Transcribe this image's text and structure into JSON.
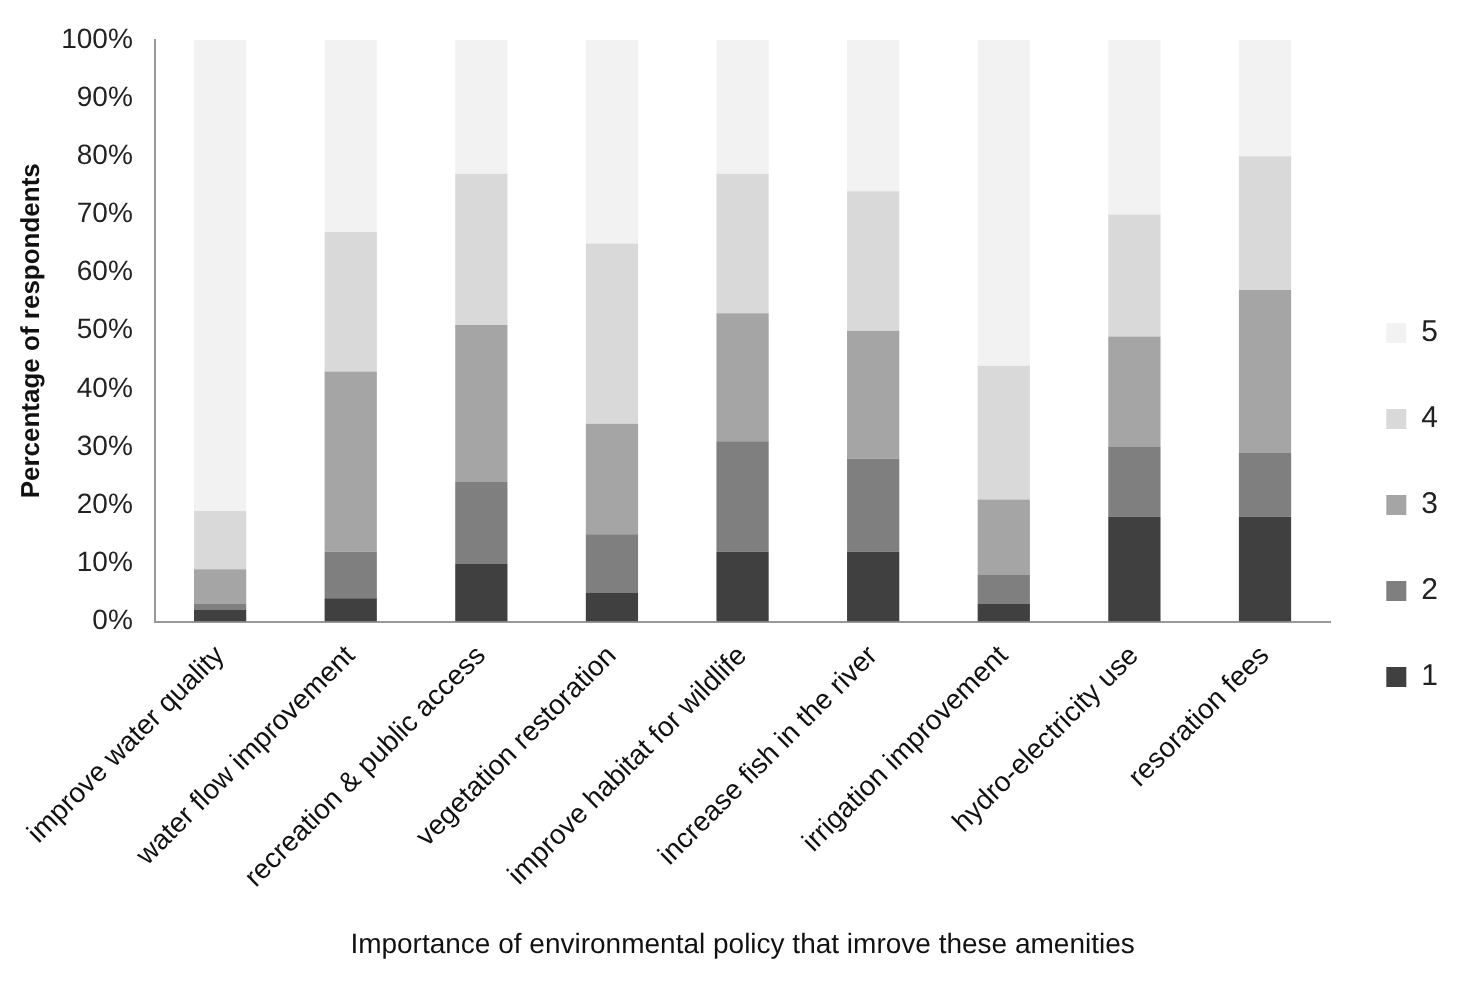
{
  "chart_data": {
    "type": "bar",
    "stacked": true,
    "xlabel": "Importance of environmental policy that imrove these amenities",
    "ylabel": "Percentage of respondents",
    "categories": [
      "improve water quality",
      "water flow improvement",
      "recreation & public access",
      "vegetation restoration",
      "improve habitat for wildlife",
      "increase fish in the river",
      "irrigation improvement",
      "hydro-electricity use",
      "resoration fees"
    ],
    "series": [
      {
        "name": "1",
        "color": "#404040",
        "values": [
          2,
          4,
          10,
          5,
          12,
          12,
          3,
          18,
          18
        ]
      },
      {
        "name": "2",
        "color": "#7f7f7f",
        "values": [
          1,
          8,
          14,
          10,
          19,
          16,
          5,
          12,
          11
        ]
      },
      {
        "name": "3",
        "color": "#a5a5a5",
        "values": [
          6,
          31,
          27,
          19,
          22,
          22,
          13,
          19,
          28
        ]
      },
      {
        "name": "4",
        "color": "#d9d9d9",
        "values": [
          10,
          24,
          26,
          31,
          24,
          24,
          23,
          21,
          23
        ]
      },
      {
        "name": "5",
        "color": "#f2f2f2",
        "values": [
          81,
          33,
          23,
          35,
          23,
          26,
          56,
          30,
          20
        ]
      }
    ],
    "ylim": [
      0,
      100
    ],
    "yticks": [
      {
        "value": 0,
        "label": "0%"
      },
      {
        "value": 10,
        "label": "10%"
      },
      {
        "value": 20,
        "label": "20%"
      },
      {
        "value": 30,
        "label": "30%"
      },
      {
        "value": 40,
        "label": "40%"
      },
      {
        "value": 50,
        "label": "50%"
      },
      {
        "value": 60,
        "label": "60%"
      },
      {
        "value": 70,
        "label": "70%"
      },
      {
        "value": 80,
        "label": "80%"
      },
      {
        "value": 90,
        "label": "90%"
      },
      {
        "value": 100,
        "label": "100%"
      }
    ],
    "grid": false,
    "legend": "right"
  }
}
